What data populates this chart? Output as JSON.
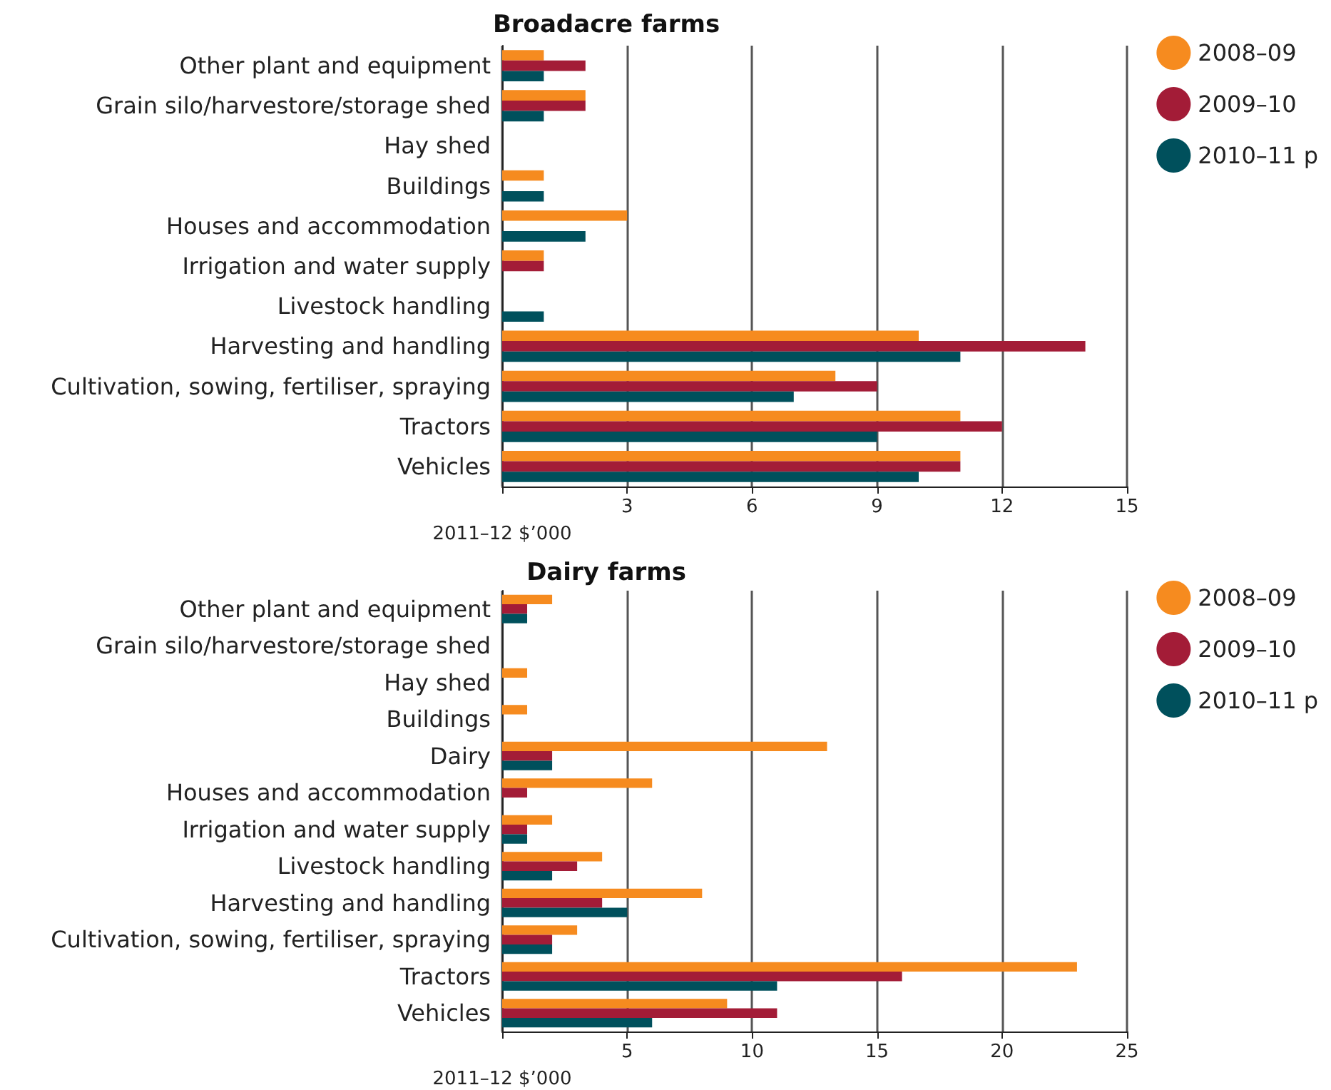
{
  "chart_data": [
    {
      "type": "bar",
      "orientation": "horizontal",
      "title": "Broadacre farms",
      "xlabel": "2011–12 $’000",
      "categories": [
        "Other plant and equipment",
        "Grain silo/harvestore/storage shed",
        "Hay shed",
        "Buildings",
        "Houses and accommodation",
        "Irrigation and water supply",
        "Livestock handling",
        "Harvesting and handling",
        "Cultivation, sowing, fertiliser, spraying",
        "Tractors",
        "Vehicles"
      ],
      "series": [
        {
          "name": "2008–09",
          "color": "#f68b1f",
          "values": [
            1,
            2,
            0,
            1,
            3,
            1,
            0,
            10,
            8,
            11,
            11
          ]
        },
        {
          "name": "2009–10",
          "color": "#a31c37",
          "values": [
            2,
            2,
            0,
            0,
            0,
            1,
            0,
            14,
            9,
            12,
            11
          ]
        },
        {
          "name": "2010–11 p",
          "color": "#00505c",
          "values": [
            1,
            1,
            0,
            1,
            2,
            0,
            1,
            11,
            7,
            9,
            10
          ]
        }
      ],
      "xlim": [
        0,
        15
      ],
      "xticks": [
        {
          "value": 0,
          "label": null
        },
        3,
        6,
        9,
        12,
        15
      ],
      "grid": "x",
      "legend": "top right"
    },
    {
      "type": "bar",
      "orientation": "horizontal",
      "title": "Dairy farms",
      "xlabel": "2011–12 $’000",
      "categories": [
        "Other plant and equipment",
        "Grain silo/harvestore/storage shed",
        "Hay shed",
        "Buildings",
        "Dairy",
        "Houses and accommodation",
        "Irrigation and water supply",
        "Livestock handling",
        "Harvesting and handling",
        "Cultivation, sowing, fertiliser, spraying",
        "Tractors",
        "Vehicles"
      ],
      "series": [
        {
          "name": "2008–09",
          "color": "#f68b1f",
          "values": [
            2,
            0,
            1,
            1,
            13,
            6,
            2,
            4,
            8,
            3,
            23,
            9
          ]
        },
        {
          "name": "2009–10",
          "color": "#a31c37",
          "values": [
            1,
            0,
            0,
            0,
            2,
            1,
            1,
            3,
            4,
            2,
            16,
            11
          ]
        },
        {
          "name": "2010–11 p",
          "color": "#00505c",
          "values": [
            1,
            0,
            0,
            0,
            2,
            0,
            1,
            2,
            5,
            2,
            11,
            6
          ]
        }
      ],
      "xlim": [
        0,
        25
      ],
      "xticks": [
        {
          "value": 0,
          "label": null
        },
        5,
        10,
        15,
        20,
        25
      ],
      "grid": "x",
      "legend": "top right"
    }
  ]
}
